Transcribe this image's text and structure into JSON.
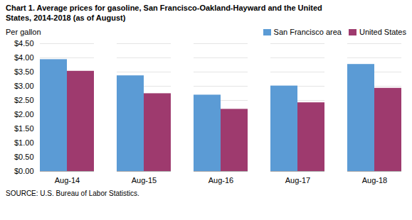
{
  "chart_data": {
    "type": "bar",
    "title": "Chart 1. Average prices for gasoline, San Francisco-Oakland-Hayward and the United\nStates, 2014-2018  (as of August)",
    "ylabel": "Per gallon",
    "source": "SOURCE: U.S. Bureau of Labor Statistics.",
    "categories": [
      "Aug-14",
      "Aug-15",
      "Aug-16",
      "Aug-17",
      "Aug-18"
    ],
    "series": [
      {
        "name": "San Francisco area",
        "color": "#5B9BD5",
        "values": [
          3.94,
          3.37,
          2.69,
          3.01,
          3.77
        ]
      },
      {
        "name": "United States",
        "color": "#9E3A6E",
        "values": [
          3.53,
          2.74,
          2.19,
          2.42,
          2.93
        ]
      }
    ],
    "ylim": [
      0,
      4.5
    ],
    "yticks": [
      {
        "value": 0.0,
        "label": "$0.00"
      },
      {
        "value": 0.5,
        "label": "$0.50"
      },
      {
        "value": 1.0,
        "label": "$1.00"
      },
      {
        "value": 1.5,
        "label": "$1.50"
      },
      {
        "value": 2.0,
        "label": "$2.00"
      },
      {
        "value": 2.5,
        "label": "$2.50"
      },
      {
        "value": 3.0,
        "label": "$3.00"
      },
      {
        "value": 3.5,
        "label": "$3.50"
      },
      {
        "value": 4.0,
        "label": "$4.00"
      },
      {
        "value": 4.5,
        "label": "$4.50"
      }
    ],
    "grid": true,
    "legend": "upper right"
  }
}
